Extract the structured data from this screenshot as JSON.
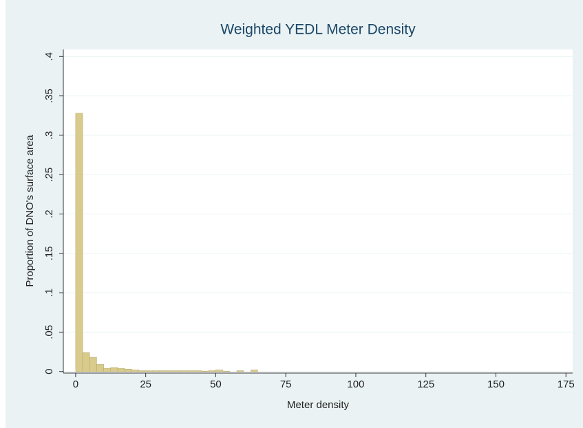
{
  "chart_data": {
    "type": "histogram",
    "title": "Weighted YEDL Meter Density",
    "xlabel": "Meter density",
    "ylabel": "Proportion of DNO's surface area",
    "color": "#d8cb8b",
    "edgecolor": "#b3a562",
    "bins": [
      0,
      2.5,
      5,
      7.5,
      10,
      12.5,
      15,
      17.5,
      20,
      22.5,
      25,
      27.5,
      30,
      32.5,
      35,
      37.5,
      40,
      42.5,
      45,
      47.5,
      50,
      52.5,
      55,
      57.5,
      60,
      62.5,
      65,
      67.5,
      70,
      72.5,
      75,
      77.5,
      80,
      82.5,
      85,
      87.5,
      90,
      92.5,
      95,
      97.5,
      100,
      102.5,
      105,
      107.5,
      110,
      112.5,
      115,
      117.5,
      120,
      122.5,
      125,
      127.5,
      130,
      132.5,
      135,
      137.5,
      140,
      142.5,
      145,
      147.5,
      150,
      152.5,
      155,
      157.5,
      160,
      162.5,
      165,
      167.5,
      170,
      172.5,
      175
    ],
    "values": [
      0.328,
      0.024,
      0.018,
      0.009,
      0.004,
      0.005,
      0.004,
      0.003,
      0.002,
      0.001,
      0.001,
      0.001,
      0.001,
      0.001,
      0.001,
      0.001,
      0.001,
      0.001,
      0.0005,
      0.001,
      0.002,
      0.0005,
      0,
      0.001,
      0,
      0.002,
      0,
      0,
      0,
      0,
      0,
      0,
      0,
      0,
      0,
      0,
      0,
      0,
      0,
      0,
      0,
      0,
      0,
      0,
      0,
      0,
      0,
      0,
      0,
      0,
      0,
      0,
      0,
      0,
      0,
      0,
      0,
      0,
      0,
      0,
      0,
      0,
      0,
      0,
      0,
      0,
      0,
      0,
      0,
      0
    ],
    "xlim": [
      -4.4,
      177.4
    ],
    "ylim": [
      -0.002,
      0.409
    ],
    "xticks": [
      0,
      25,
      50,
      75,
      100,
      125,
      150,
      175
    ],
    "yticks": [
      0,
      {
        "value": 0.05,
        "label": ".05"
      },
      {
        "value": 0.1,
        "label": ".1"
      },
      {
        "value": 0.15,
        "label": ".15"
      },
      {
        "value": 0.2,
        "label": ".2"
      },
      {
        "value": 0.25,
        "label": ".25"
      },
      {
        "value": 0.3,
        "label": ".3"
      },
      {
        "value": 0.35,
        "label": ".35"
      },
      {
        "value": 0.4,
        "label": ".4"
      }
    ],
    "grid": true
  }
}
